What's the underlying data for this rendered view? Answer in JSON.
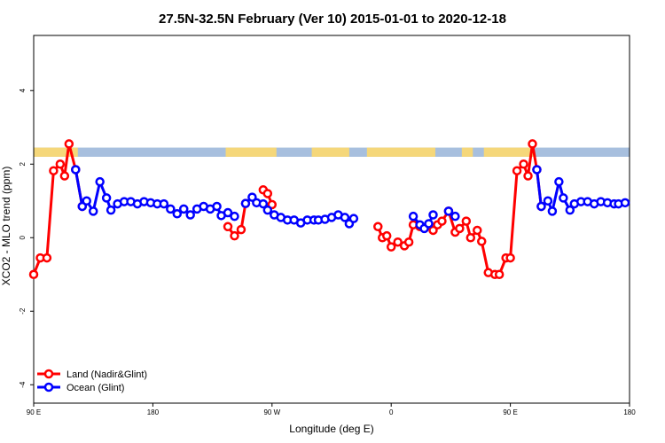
{
  "chart_data": {
    "type": "line",
    "title": "27.5N-32.5N February (Ver 10)   2015-01-01 to 2020-12-18",
    "xlabel": "Longitude (deg E)",
    "ylabel": "XCO2 - MLO trend (ppm)",
    "xlim": [
      -90,
      180
    ],
    "ylim": [
      -4.5,
      5.5
    ],
    "x_ticks": [
      {
        "value": -90,
        "label": "90 E"
      },
      {
        "value": -36,
        "label": "180"
      },
      {
        "value": 18,
        "label": "90 W"
      },
      {
        "value": 72,
        "label": "0"
      },
      {
        "value": 126,
        "label": "90 E"
      },
      {
        "value": 180,
        "label": "180"
      }
    ],
    "y_ticks": [
      {
        "value": -4,
        "label": "-4"
      },
      {
        "value": -2,
        "label": "-2"
      },
      {
        "value": 0,
        "label": "0"
      },
      {
        "value": 2,
        "label": "2"
      },
      {
        "value": 4,
        "label": "4"
      }
    ],
    "land_mask_band": {
      "y_range": [
        2.2,
        2.45
      ],
      "land_color": "#f5d77a",
      "ocean_color": "#a7bfde"
    },
    "legend_position": "bottom-left",
    "series": [
      {
        "name": "Land (Nadir&Glint)",
        "color": "#ff0000",
        "segments": [
          [
            [
              -90,
              -1.0
            ],
            [
              -87,
              -0.55
            ],
            [
              -84,
              -0.55
            ],
            [
              -81,
              1.82
            ],
            [
              -78,
              2.0
            ],
            [
              -76,
              1.68
            ],
            [
              -74,
              2.55
            ],
            [
              -71,
              1.85
            ],
            [
              -68,
              0.85
            ]
          ],
          [
            [
              -2,
              0.3
            ],
            [
              1,
              0.05
            ],
            [
              4,
              0.22
            ],
            [
              6,
              0.93
            ]
          ],
          [
            [
              14,
              1.3
            ],
            [
              16,
              1.2
            ],
            [
              18,
              0.9
            ]
          ],
          [
            [
              66,
              0.3
            ],
            [
              68,
              0.0
            ],
            [
              70,
              0.05
            ],
            [
              72,
              -0.25
            ],
            [
              75,
              -0.12
            ],
            [
              78,
              -0.22
            ],
            [
              80,
              -0.12
            ],
            [
              82,
              0.35
            ],
            [
              85,
              0.3
            ]
          ],
          [
            [
              91,
              0.2
            ],
            [
              93,
              0.35
            ],
            [
              95,
              0.45
            ],
            [
              98,
              0.72
            ],
            [
              101,
              0.15
            ],
            [
              103,
              0.25
            ],
            [
              106,
              0.45
            ],
            [
              108,
              0.0
            ],
            [
              111,
              0.2
            ],
            [
              113,
              -0.1
            ],
            [
              116,
              -0.95
            ],
            [
              119,
              -1.0
            ],
            [
              121,
              -1.0
            ],
            [
              124,
              -0.55
            ],
            [
              126,
              -0.55
            ],
            [
              129,
              1.82
            ],
            [
              132,
              2.0
            ],
            [
              134,
              1.68
            ],
            [
              136,
              2.55
            ],
            [
              138,
              1.85
            ],
            [
              140,
              0.85
            ]
          ]
        ]
      },
      {
        "name": "Ocean (Glint)",
        "color": "#0000ff",
        "segments": [
          [
            [
              -71,
              1.85
            ],
            [
              -68,
              0.85
            ],
            [
              -66,
              1.0
            ],
            [
              -63,
              0.72
            ],
            [
              -60,
              1.52
            ],
            [
              -57,
              1.08
            ],
            [
              -55,
              0.75
            ],
            [
              -52,
              0.92
            ],
            [
              -49,
              0.98
            ],
            [
              -46,
              0.98
            ],
            [
              -43,
              0.92
            ],
            [
              -40,
              0.98
            ],
            [
              -37,
              0.95
            ],
            [
              -34,
              0.92
            ],
            [
              -31,
              0.92
            ],
            [
              -28,
              0.78
            ],
            [
              -25,
              0.65
            ],
            [
              -22,
              0.78
            ],
            [
              -19,
              0.62
            ],
            [
              -16,
              0.78
            ],
            [
              -13,
              0.85
            ],
            [
              -10,
              0.78
            ],
            [
              -7,
              0.85
            ],
            [
              -5,
              0.6
            ],
            [
              -2,
              0.68
            ],
            [
              1,
              0.58
            ]
          ],
          [
            [
              6,
              0.93
            ],
            [
              9,
              1.1
            ],
            [
              11,
              0.95
            ],
            [
              14,
              0.92
            ],
            [
              16,
              0.75
            ],
            [
              19,
              0.62
            ],
            [
              22,
              0.55
            ],
            [
              25,
              0.48
            ],
            [
              28,
              0.48
            ],
            [
              31,
              0.4
            ],
            [
              34,
              0.48
            ],
            [
              37,
              0.48
            ],
            [
              39,
              0.48
            ],
            [
              42,
              0.5
            ],
            [
              45,
              0.55
            ],
            [
              48,
              0.62
            ],
            [
              51,
              0.55
            ],
            [
              53,
              0.38
            ],
            [
              55,
              0.52
            ]
          ],
          [
            [
              82,
              0.58
            ],
            [
              85,
              0.35
            ],
            [
              87,
              0.25
            ],
            [
              89,
              0.38
            ],
            [
              91,
              0.62
            ]
          ],
          [
            [
              98,
              0.72
            ],
            [
              101,
              0.58
            ]
          ],
          [
            [
              138,
              1.85
            ],
            [
              140,
              0.85
            ],
            [
              143,
              1.0
            ],
            [
              145,
              0.72
            ],
            [
              148,
              1.52
            ],
            [
              150,
              1.08
            ],
            [
              153,
              0.75
            ],
            [
              155,
              0.92
            ],
            [
              158,
              0.98
            ],
            [
              161,
              0.98
            ],
            [
              164,
              0.92
            ],
            [
              167,
              0.98
            ],
            [
              170,
              0.95
            ],
            [
              173,
              0.92
            ],
            [
              175,
              0.92
            ],
            [
              178,
              0.95
            ]
          ]
        ]
      }
    ]
  }
}
